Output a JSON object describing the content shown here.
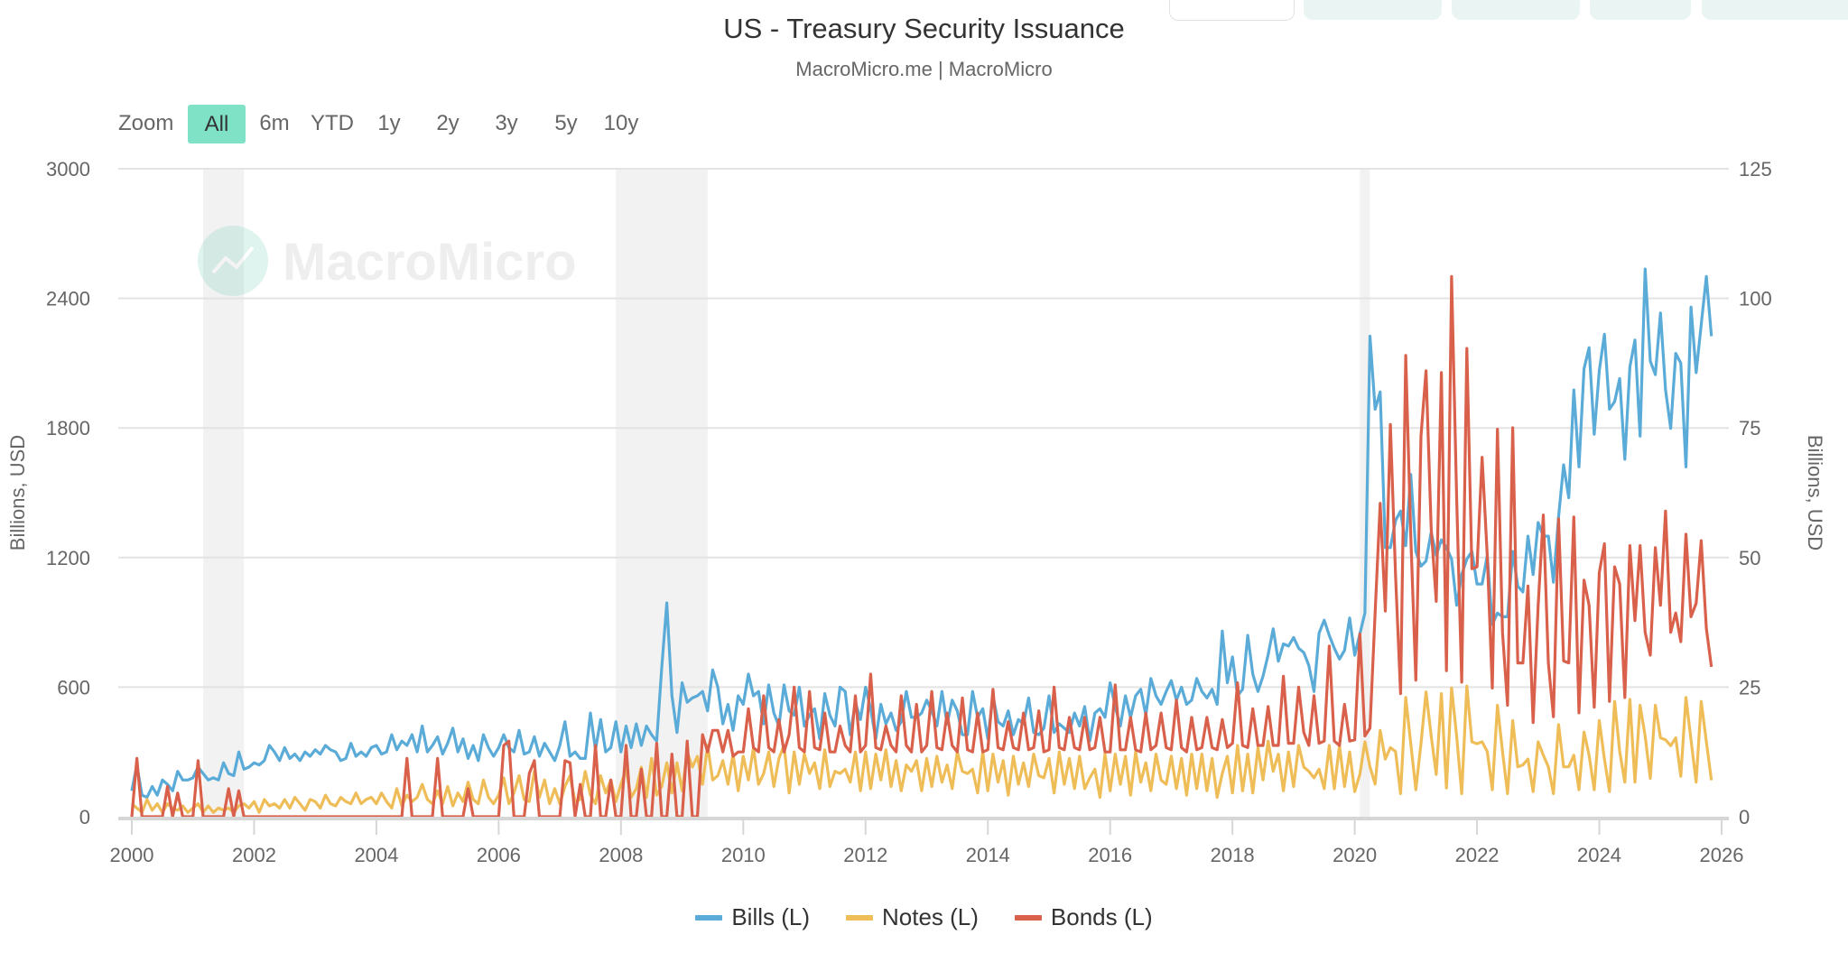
{
  "title": "US - Treasury Security Issuance",
  "subtitle": "MacroMicro.me | MacroMicro",
  "zoom": {
    "label": "Zoom",
    "options": [
      "All",
      "6m",
      "YTD",
      "1y",
      "2y",
      "3y",
      "5y",
      "10y"
    ],
    "selected": "All",
    "selected_color": "#7fe1c6"
  },
  "watermark": "MacroMicro",
  "chart_data": {
    "type": "line",
    "x_start": "2000-01",
    "frequency": "monthly",
    "xlim": [
      2000,
      2026
    ],
    "xticks": [
      "2000",
      "2002",
      "2004",
      "2006",
      "2008",
      "2010",
      "2012",
      "2014",
      "2016",
      "2018",
      "2020",
      "2022",
      "2024",
      "2026"
    ],
    "ylabel_left": "Billions, USD",
    "ylabel_right": "Billions, USD",
    "ylim_left": [
      0,
      3000
    ],
    "yticks_left": [
      "0",
      "600",
      "1200",
      "1800",
      "2400",
      "3000"
    ],
    "ylim_right": [
      0,
      125
    ],
    "yticks_right": [
      "0",
      "25",
      "50",
      "75",
      "100",
      "125"
    ],
    "grid": true,
    "legend_position": "bottom",
    "recession_bands": [
      [
        "2001-03",
        "2001-11"
      ],
      [
        "2007-12",
        "2009-06"
      ],
      [
        "2020-02",
        "2020-04"
      ]
    ],
    "series": [
      {
        "name": "Bills (L)",
        "color": "#5aabd7",
        "values": [
          120,
          240,
          100,
          90,
          140,
          100,
          170,
          150,
          120,
          210,
          170,
          170,
          180,
          230,
          200,
          170,
          180,
          170,
          250,
          200,
          190,
          300,
          220,
          230,
          250,
          240,
          260,
          330,
          300,
          260,
          320,
          270,
          290,
          260,
          300,
          280,
          310,
          290,
          330,
          310,
          300,
          260,
          270,
          340,
          280,
          300,
          280,
          320,
          330,
          290,
          300,
          380,
          310,
          350,
          330,
          380,
          300,
          420,
          300,
          330,
          370,
          290,
          340,
          410,
          300,
          360,
          270,
          330,
          260,
          380,
          320,
          280,
          320,
          380,
          320,
          300,
          400,
          290,
          300,
          370,
          280,
          340,
          300,
          260,
          330,
          440,
          280,
          300,
          270,
          270,
          480,
          310,
          450,
          300,
          320,
          440,
          300,
          420,
          320,
          430,
          330,
          420,
          380,
          350,
          690,
          990,
          560,
          390,
          620,
          530,
          550,
          560,
          580,
          490,
          680,
          600,
          430,
          520,
          400,
          560,
          520,
          660,
          560,
          580,
          430,
          610,
          480,
          420,
          610,
          490,
          470,
          600,
          420,
          470,
          500,
          360,
          570,
          470,
          420,
          600,
          580,
          380,
          530,
          450,
          600,
          500,
          360,
          520,
          430,
          480,
          400,
          440,
          580,
          460,
          460,
          480,
          540,
          490,
          420,
          580,
          430,
          540,
          490,
          380,
          380,
          580,
          460,
          500,
          360,
          560,
          440,
          420,
          490,
          380,
          450,
          430,
          550,
          390,
          380,
          410,
          560,
          390,
          430,
          410,
          390,
          480,
          420,
          510,
          350,
          480,
          500,
          460,
          620,
          510,
          420,
          560,
          460,
          560,
          590,
          470,
          640,
          560,
          520,
          580,
          630,
          540,
          600,
          520,
          540,
          640,
          580,
          550,
          590,
          520,
          860,
          620,
          740,
          560,
          590,
          840,
          660,
          580,
          650,
          750,
          870,
          720,
          800,
          790,
          830,
          780,
          760,
          700,
          580,
          850,
          910,
          840,
          780,
          730,
          770,
          920,
          748,
          846,
          944,
          2225,
          1887,
          1967,
          1246,
          1246,
          1371,
          1415,
          1255,
          1584,
          1228,
          1160,
          1184,
          1317,
          1210,
          1282,
          1246,
          1193,
          979,
          1121,
          1193,
          1228,
          1077,
          1077,
          1210,
          890,
          943,
          926,
          926,
          1228,
          1068,
          1041,
          1299,
          1121,
          1362,
          1299,
          1299,
          1086,
          1388,
          1629,
          1477,
          1976,
          1620,
          2074,
          2172,
          1771,
          2065,
          2234,
          1887,
          1922,
          2029,
          1655,
          2083,
          2207,
          1762,
          2536,
          2109,
          2047,
          2332,
          1976,
          1798,
          2145,
          2100,
          1620,
          2359,
          2056,
          2278,
          2501,
          2225
        ]
      },
      {
        "name": "Notes (L)",
        "color": "#efbd57",
        "values": [
          60,
          40,
          20,
          80,
          30,
          60,
          20,
          60,
          40,
          30,
          50,
          20,
          40,
          60,
          20,
          50,
          20,
          40,
          30,
          40,
          20,
          50,
          60,
          40,
          70,
          20,
          80,
          50,
          60,
          40,
          80,
          40,
          90,
          60,
          30,
          80,
          70,
          40,
          100,
          60,
          50,
          90,
          70,
          60,
          110,
          60,
          80,
          90,
          60,
          110,
          70,
          40,
          130,
          50,
          100,
          70,
          90,
          150,
          80,
          60,
          120,
          60,
          140,
          50,
          110,
          70,
          160,
          80,
          60,
          170,
          90,
          60,
          100,
          180,
          60,
          110,
          190,
          80,
          70,
          210,
          90,
          170,
          60,
          130,
          60,
          140,
          190,
          70,
          80,
          210,
          100,
          60,
          190,
          110,
          170,
          70,
          150,
          220,
          90,
          130,
          230,
          90,
          270,
          100,
          140,
          250,
          110,
          250,
          120,
          300,
          230,
          280,
          150,
          330,
          170,
          190,
          260,
          150,
          290,
          120,
          280,
          170,
          320,
          150,
          200,
          300,
          140,
          270,
          330,
          110,
          300,
          150,
          290,
          200,
          250,
          130,
          310,
          140,
          210,
          200,
          220,
          160,
          300,
          120,
          300,
          130,
          290,
          170,
          310,
          140,
          260,
          120,
          240,
          210,
          260,
          120,
          270,
          140,
          280,
          160,
          240,
          130,
          300,
          210,
          200,
          220,
          110,
          300,
          120,
          290,
          160,
          260,
          100,
          280,
          150,
          250,
          140,
          290,
          190,
          180,
          270,
          110,
          300,
          150,
          270,
          130,
          280,
          130,
          180,
          220,
          90,
          290,
          120,
          290,
          150,
          280,
          100,
          300,
          160,
          250,
          120,
          290,
          170,
          150,
          280,
          130,
          270,
          100,
          290,
          130,
          290,
          120,
          270,
          90,
          200,
          280,
          110,
          330,
          120,
          290,
          110,
          320,
          170,
          350,
          210,
          290,
          120,
          300,
          140,
          330,
          230,
          210,
          180,
          220,
          130,
          330,
          130,
          330,
          140,
          300,
          116,
          196,
          347,
          231,
          151,
          400,
          267,
          320,
          302,
          107,
          552,
          338,
          125,
          338,
          578,
          374,
          196,
          570,
          133,
          596,
          374,
          107,
          605,
          347,
          338,
          347,
          302,
          125,
          516,
          302,
          107,
          445,
          231,
          240,
          267,
          116,
          347,
          285,
          231,
          107,
          427,
          231,
          231,
          285,
          125,
          392,
          285,
          125,
          445,
          267,
          116,
          534,
          302,
          160,
          543,
          160,
          516,
          374,
          178,
          516,
          365,
          356,
          329,
          365,
          187,
          552,
          356,
          160,
          534,
          347,
          169
        ]
      },
      {
        "name": "Bonds (L)",
        "color": "#d9604a",
        "values": [
          0,
          270,
          0,
          0,
          0,
          0,
          0,
          140,
          0,
          110,
          0,
          0,
          0,
          260,
          0,
          0,
          0,
          0,
          0,
          130,
          0,
          120,
          0,
          0,
          0,
          0,
          0,
          0,
          0,
          0,
          0,
          0,
          0,
          0,
          0,
          0,
          0,
          0,
          0,
          0,
          0,
          0,
          0,
          0,
          0,
          0,
          0,
          0,
          0,
          0,
          0,
          0,
          0,
          0,
          270,
          0,
          0,
          0,
          0,
          0,
          270,
          0,
          0,
          0,
          0,
          0,
          130,
          0,
          0,
          0,
          0,
          0,
          0,
          330,
          350,
          0,
          0,
          0,
          200,
          260,
          0,
          0,
          0,
          0,
          0,
          260,
          250,
          0,
          150,
          0,
          0,
          330,
          0,
          0,
          170,
          0,
          0,
          330,
          0,
          0,
          220,
          0,
          0,
          340,
          0,
          0,
          290,
          0,
          0,
          350,
          0,
          0,
          380,
          300,
          400,
          400,
          300,
          400,
          280,
          300,
          300,
          500,
          320,
          300,
          560,
          320,
          300,
          450,
          300,
          380,
          600,
          320,
          300,
          580,
          320,
          310,
          480,
          300,
          300,
          420,
          330,
          300,
          560,
          300,
          330,
          660,
          320,
          310,
          420,
          330,
          300,
          560,
          330,
          300,
          520,
          300,
          330,
          580,
          320,
          310,
          480,
          330,
          300,
          550,
          310,
          300,
          480,
          300,
          310,
          590,
          320,
          310,
          440,
          320,
          310,
          480,
          310,
          320,
          490,
          300,
          310,
          600,
          320,
          310,
          460,
          320,
          310,
          460,
          310,
          320,
          460,
          300,
          300,
          610,
          310,
          310,
          460,
          310,
          300,
          480,
          310,
          330,
          480,
          320,
          310,
          540,
          320,
          300,
          460,
          310,
          320,
          460,
          320,
          310,
          450,
          320,
          340,
          620,
          330,
          320,
          500,
          330,
          330,
          510,
          330,
          330,
          650,
          340,
          340,
          600,
          390,
          330,
          560,
          340,
          350,
          790,
          350,
          330,
          520,
          350,
          356,
          846,
          374,
          410,
          944,
          1451,
          952,
          1816,
          1121,
          570,
          2136,
          1299,
          632,
          1762,
          2065,
          1335,
          997,
          2056,
          676,
          2501,
          1477,
          623,
          2168,
          1148,
          1157,
          1664,
          1210,
          596,
          1794,
          854,
          516,
          1801,
          712,
          712,
          1068,
          436,
          979,
          1397,
          712,
          463,
          1379,
          721,
          712,
          1388,
          481,
          1095,
          979,
          507,
          1130,
          1264,
          534,
          1157,
          1077,
          552,
          1255,
          908,
          1255,
          854,
          748,
          1246,
          979,
          1415,
          854,
          943,
          810,
          1308,
          926,
          988,
          1278,
          872,
          694
        ]
      }
    ]
  }
}
